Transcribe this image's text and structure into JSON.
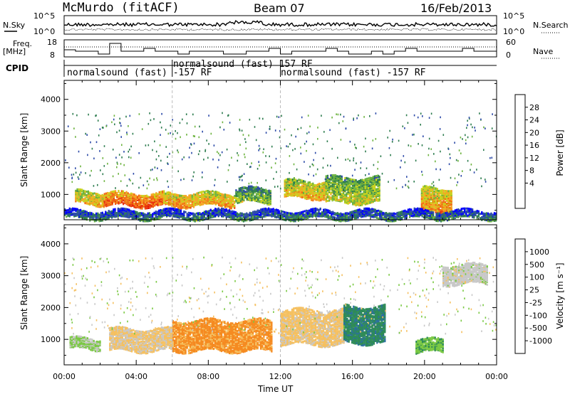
{
  "header": {
    "station": "McMurdo (fitACF)",
    "beam": "Beam 07",
    "date": "16/Feb/2013"
  },
  "noise_panel": {
    "left_label": "N.Sky",
    "right_label": "N.Search",
    "y_top": "10^5",
    "y_bottom": "10^0"
  },
  "freq_panel": {
    "left_label_1": "Freq.",
    "left_label_2": "[MHz]",
    "left_ticks": [
      "18",
      "8"
    ],
    "right_label": "Nave",
    "right_ticks": [
      "60",
      "0"
    ]
  },
  "cpid": {
    "label": "CPID",
    "segments": [
      {
        "start_h": 0,
        "text": "normalsound (fast) -157 RF"
      },
      {
        "start_h": 6,
        "text": "normalsound (fast) 157 RF"
      },
      {
        "start_h": 12,
        "text": "normalsound (fast) -157 RF"
      }
    ]
  },
  "chart_data": [
    {
      "type": "heatmap",
      "name": "power",
      "ylabel": "Slant Range [km]",
      "xlim": [
        0,
        24
      ],
      "ylim": [
        200,
        4600
      ],
      "yticks": [
        "1000",
        "2000",
        "3000",
        "4000"
      ],
      "colorbar": {
        "label": "Power [dB]",
        "ticks": [
          "28",
          "24",
          "20",
          "16",
          "12",
          "8",
          "4"
        ],
        "colors": [
          "#0000ff",
          "#2c4aa8",
          "#2e7d4f",
          "#6db33f",
          "#c9d31d",
          "#f5a623",
          "#f06a14",
          "#e8320e",
          "#e00000"
        ]
      },
      "features": [
        {
          "hours": [
            0.6,
            2.2
          ],
          "range_km": [
            650,
            1050
          ],
          "db": 20
        },
        {
          "hours": [
            2.2,
            5.5
          ],
          "range_km": [
            600,
            1000
          ],
          "db": 26
        },
        {
          "hours": [
            5.5,
            9.5
          ],
          "range_km": [
            600,
            1000
          ],
          "db": 22
        },
        {
          "hours": [
            9.5,
            11.5
          ],
          "range_km": [
            700,
            1150
          ],
          "db": 14
        },
        {
          "hours": [
            12.2,
            14.5
          ],
          "range_km": [
            850,
            1400
          ],
          "db": 20
        },
        {
          "hours": [
            14.5,
            17.5
          ],
          "range_km": [
            700,
            1500
          ],
          "db": 16
        },
        {
          "hours": [
            19.8,
            21.5
          ],
          "range_km": [
            400,
            1150
          ],
          "db": 22
        },
        {
          "hours": [
            0,
            24
          ],
          "range_km": [
            200,
            450
          ],
          "db": 8
        }
      ]
    },
    {
      "type": "heatmap",
      "name": "velocity",
      "xlabel": "Time UT",
      "ylabel": "Slant Range [km]",
      "xlim": [
        0,
        24
      ],
      "ylim": [
        200,
        4600
      ],
      "xticks": [
        "00:00",
        "04:00",
        "08:00",
        "12:00",
        "16:00",
        "20:00",
        "00:00"
      ],
      "yticks": [
        "1000",
        "2000",
        "3000",
        "4000"
      ],
      "colorbar": {
        "label": "Velocity [m s⁻¹]",
        "ticks": [
          "1000",
          "500",
          "100",
          "25",
          "-25",
          "-100",
          "-500",
          "-1000"
        ],
        "colors": [
          "#e80000",
          "#f04010",
          "#f58a20",
          "#f5c060",
          "#c8c8c8",
          "#7ac943",
          "#2e8b57",
          "#2a6f9e",
          "#1030b0"
        ]
      },
      "features": [
        {
          "hours": [
            0.3,
            2.0
          ],
          "range_km": [
            650,
            1000
          ],
          "ms": -150
        },
        {
          "hours": [
            2.5,
            6.0
          ],
          "range_km": [
            600,
            1300
          ],
          "ms": 150
        },
        {
          "hours": [
            6.0,
            11.5
          ],
          "range_km": [
            600,
            1550
          ],
          "ms": 450
        },
        {
          "hours": [
            12.0,
            15.5
          ],
          "range_km": [
            800,
            1900
          ],
          "ms": 200
        },
        {
          "hours": [
            15.5,
            17.8
          ],
          "range_km": [
            850,
            2000
          ],
          "ms": -550
        },
        {
          "hours": [
            19.5,
            21.0
          ],
          "range_km": [
            550,
            950
          ],
          "ms": -300
        },
        {
          "hours": [
            21.0,
            23.5
          ],
          "range_km": [
            2700,
            3300
          ],
          "ms": 0
        }
      ]
    }
  ]
}
